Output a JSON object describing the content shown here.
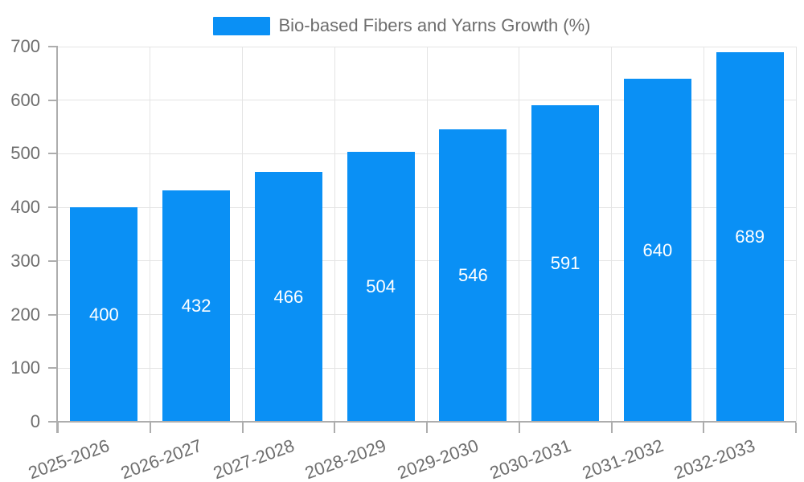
{
  "legend": {
    "label": "Bio-based Fibers and Yarns Growth (%)"
  },
  "chart_data": {
    "type": "bar",
    "title": "Bio-based Fibers and Yarns Growth (%)",
    "categories": [
      "2025-2026",
      "2026-2027",
      "2027-2028",
      "2028-2029",
      "2029-2030",
      "2030-2031",
      "2031-2032",
      "2032-2033"
    ],
    "values": [
      400,
      432,
      466,
      504,
      546,
      591,
      640,
      689
    ],
    "xlabel": "",
    "ylabel": "",
    "ylim": [
      0,
      700
    ],
    "y_ticks": [
      0,
      100,
      200,
      300,
      400,
      500,
      600,
      700
    ],
    "grid": true,
    "legend_position": "top-center",
    "x_label_rotation_deg": -20,
    "colors": {
      "bar": "#0a90f5",
      "value_label": "#ffffff",
      "axis_text": "#6e6e6e",
      "grid_line": "#e4e4e4",
      "axis_line": "#adadad",
      "background": "#ffffff"
    }
  }
}
